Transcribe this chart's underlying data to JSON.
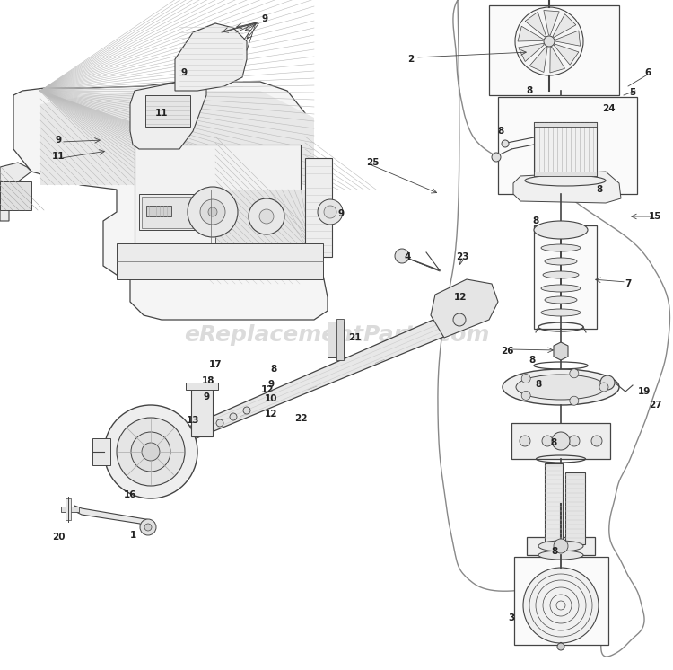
{
  "watermark": "eReplacementParts.com",
  "watermark_color": "#cccccc",
  "watermark_fontsize": 18,
  "bg": "#ffffff",
  "lc": "#666666",
  "lc_dark": "#444444",
  "lc_light": "#aaaaaa",
  "label_color": "#222222",
  "label_fs": 7.5,
  "fig_w": 7.5,
  "fig_h": 7.46,
  "dpi": 100
}
